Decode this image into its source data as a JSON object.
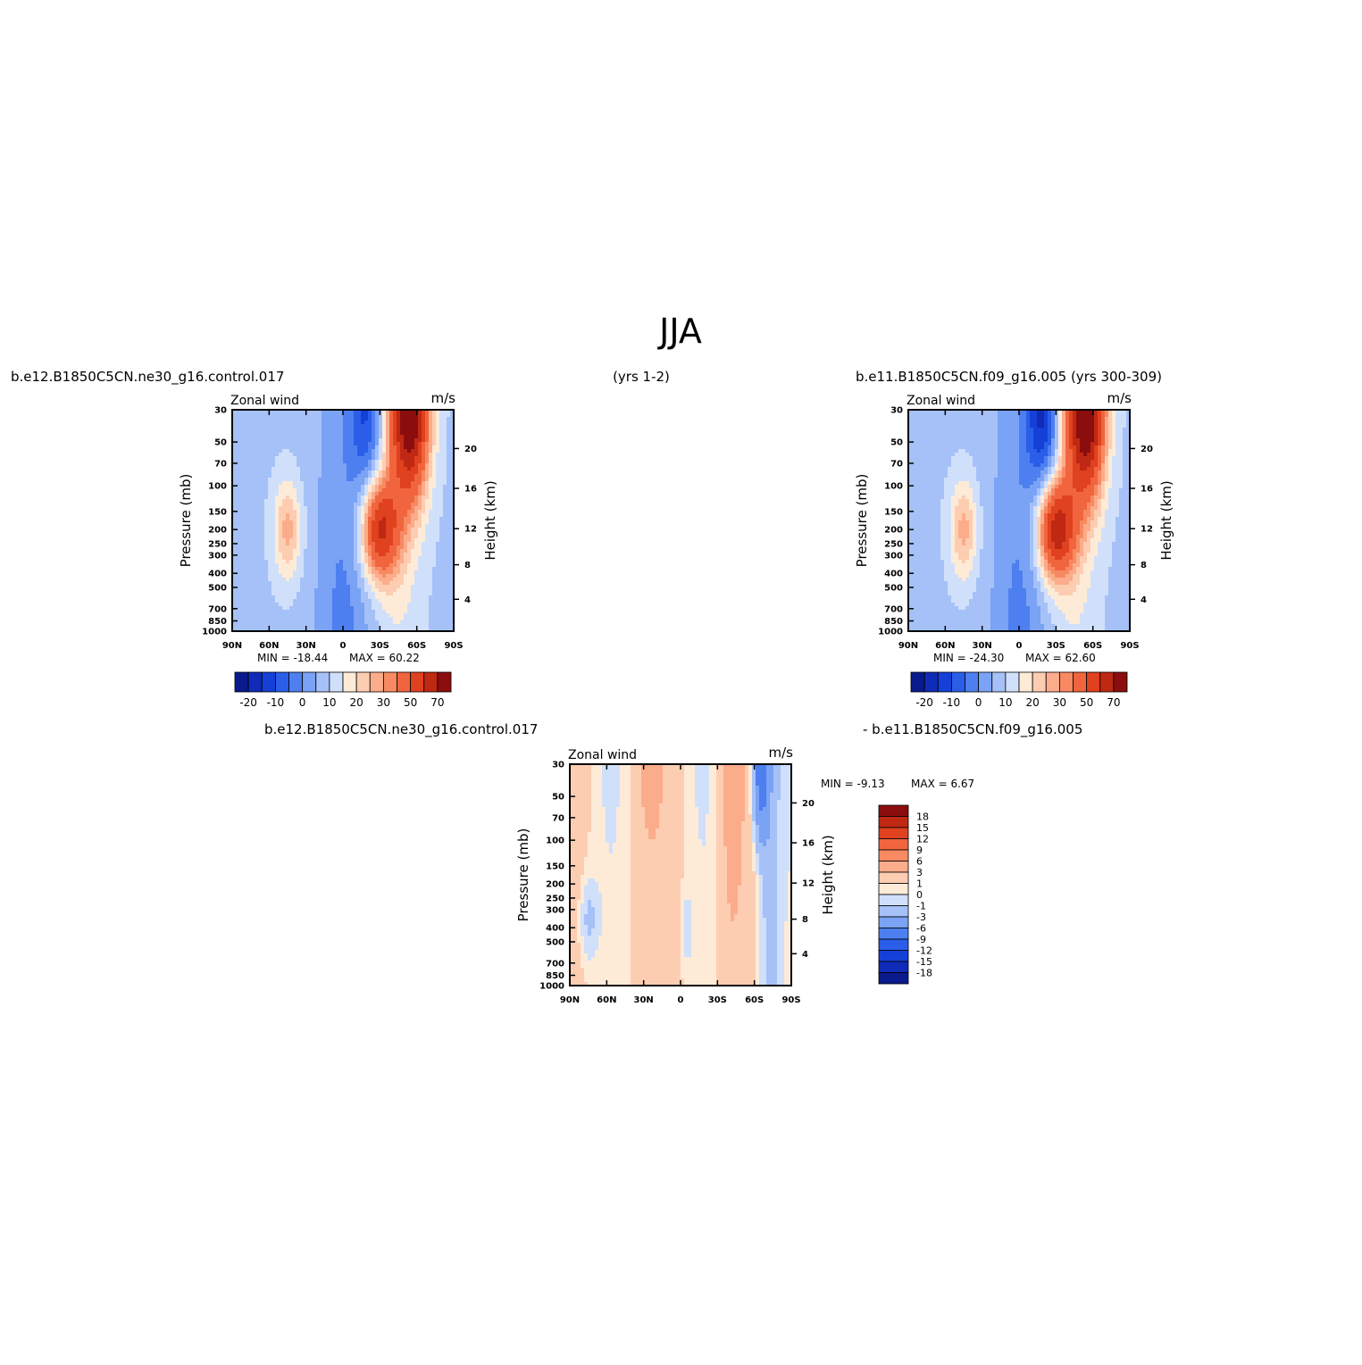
{
  "figure": {
    "title": "JJA",
    "left_case": "b.e12.B1850C5CN.ne30_g16.control.017",
    "left_years": "(yrs 1-2)",
    "right_case": "b.e11.B1850C5CN.f09_g16.005 (yrs 300-309)",
    "diff_left": "b.e12.B1850C5CN.ne30_g16.control.017",
    "diff_right": "- b.e11.B1850C5CN.f09_g16.005"
  },
  "chart_data": [
    {
      "type": "heatmap",
      "variable": "Zonal wind",
      "units": "m/s",
      "ylabel": "Pressure (mb)",
      "ylabel_right": "Height (km)",
      "x_ticks": [
        "90N",
        "60N",
        "30N",
        "0",
        "30S",
        "60S",
        "90S"
      ],
      "y_ticks": [
        "30",
        "50",
        "70",
        "100",
        "150",
        "200",
        "250",
        "300",
        "400",
        "500",
        "700",
        "850",
        "1000"
      ],
      "height_ticks": [
        "4",
        "8",
        "12",
        "16",
        "20"
      ],
      "min_label": "MIN = -18.44",
      "max_label": "MAX = 60.22",
      "colorbar_labels": [
        "-20",
        "-10",
        "0",
        "10",
        "20",
        "30",
        "50",
        "70"
      ],
      "colors": [
        "#0a1a8c",
        "#0f2bb8",
        "#1540d8",
        "#2a5ee8",
        "#4d7ff0",
        "#7aa2f5",
        "#a6c1f8",
        "#d0e0fb",
        "#fdebd8",
        "#fdcdb2",
        "#fbac8a",
        "#f78a62",
        "#f0653e",
        "#e0411e",
        "#bf2812",
        "#8c0d0d"
      ],
      "annual_stats": {
        "min": -18.44,
        "max": 60.22
      },
      "features": [
        {
          "lat": -20,
          "p": 30,
          "value": -18
        },
        {
          "lat": 45,
          "p": 200,
          "value": 18
        },
        {
          "lat": -30,
          "p": 200,
          "value": 45
        },
        {
          "lat": -55,
          "p": 30,
          "value": 60
        }
      ]
    },
    {
      "type": "heatmap",
      "variable": "Zonal wind",
      "units": "m/s",
      "ylabel": "Pressure (mb)",
      "ylabel_right": "Height (km)",
      "x_ticks": [
        "90N",
        "60N",
        "30N",
        "0",
        "30S",
        "60S",
        "90S"
      ],
      "y_ticks": [
        "30",
        "50",
        "70",
        "100",
        "150",
        "200",
        "250",
        "300",
        "400",
        "500",
        "700",
        "850",
        "1000"
      ],
      "height_ticks": [
        "4",
        "8",
        "12",
        "16",
        "20"
      ],
      "min_label": "MIN = -24.30",
      "max_label": "MAX = 62.60",
      "colorbar_labels": [
        "-20",
        "-10",
        "0",
        "10",
        "20",
        "30",
        "50",
        "70"
      ],
      "colors": [
        "#0a1a8c",
        "#0f2bb8",
        "#1540d8",
        "#2a5ee8",
        "#4d7ff0",
        "#7aa2f5",
        "#a6c1f8",
        "#d0e0fb",
        "#fdebd8",
        "#fdcdb2",
        "#fbac8a",
        "#f78a62",
        "#f0653e",
        "#e0411e",
        "#bf2812",
        "#8c0d0d"
      ],
      "annual_stats": {
        "min": -24.3,
        "max": 62.6
      },
      "features": [
        {
          "lat": -20,
          "p": 30,
          "value": -24
        },
        {
          "lat": 45,
          "p": 200,
          "value": 18
        },
        {
          "lat": -30,
          "p": 200,
          "value": 50
        },
        {
          "lat": -55,
          "p": 30,
          "value": 62
        }
      ]
    },
    {
      "type": "heatmap",
      "variable": "Zonal wind",
      "units": "m/s",
      "ylabel": "Pressure (mb)",
      "ylabel_right": "Height (km)",
      "x_ticks": [
        "90N",
        "60N",
        "30N",
        "0",
        "30S",
        "60S",
        "90S"
      ],
      "y_ticks": [
        "30",
        "50",
        "70",
        "100",
        "150",
        "200",
        "250",
        "300",
        "400",
        "500",
        "700",
        "850",
        "1000"
      ],
      "height_ticks": [
        "4",
        "8",
        "12",
        "16",
        "20"
      ],
      "min_label": "MIN = -9.13",
      "max_label": "MAX = 6.67",
      "colorbar_labels": [
        "18",
        "15",
        "12",
        "9",
        "6",
        "3",
        "1",
        "0",
        "-1",
        "-3",
        "-6",
        "-9",
        "-12",
        "-15",
        "-18"
      ],
      "colors": [
        "#8c0d0d",
        "#bf2812",
        "#e0411e",
        "#f0653e",
        "#f78a62",
        "#fbac8a",
        "#fdcdb2",
        "#fdebd8",
        "#d0e0fb",
        "#a6c1f8",
        "#7aa2f5",
        "#4d7ff0",
        "#2a5ee8",
        "#1540d8",
        "#0f2bb8",
        "#0a1a8c"
      ],
      "annual_stats": {
        "min": -9.13,
        "max": 6.67
      }
    }
  ]
}
